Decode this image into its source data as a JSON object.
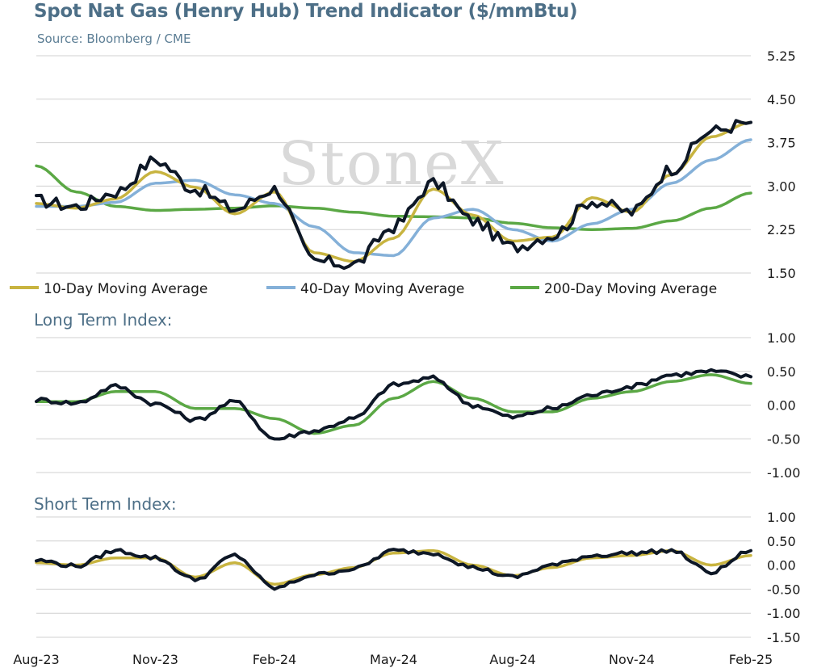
{
  "title": "Spot Nat Gas (Henry Hub) Trend Indicator ($/mmBtu)",
  "source": "Source: Bloomberg / CME",
  "watermark": "StoneX",
  "colors": {
    "price": "#0d1726",
    "ma10": "#c8b440",
    "ma40": "#84b0d8",
    "ma200": "#5ba845",
    "grid": "#d0d0d0",
    "title": "#4d6f87"
  },
  "x_axis": {
    "labels": [
      "Aug-23",
      "Nov-23",
      "Feb-24",
      "May-24",
      "Aug-24",
      "Nov-24",
      "Feb-25"
    ]
  },
  "chart_data": [
    {
      "type": "line",
      "title": "Spot Nat Gas (Henry Hub) Trend Indicator ($/mmBtu)",
      "ylim": [
        1.5,
        5.25
      ],
      "yticks": [
        "5.25",
        "4.50",
        "3.75",
        "3.00",
        "2.25",
        "1.50"
      ],
      "legend_position": "bottom",
      "grid": true,
      "x": [
        "Aug-23",
        "Sep-23",
        "Oct-23",
        "Nov-23",
        "Dec-23",
        "Jan-24",
        "Feb-24",
        "Mar-24",
        "Apr-24",
        "May-24",
        "Jun-24",
        "Jul-24",
        "Aug-24",
        "Sep-24",
        "Oct-24",
        "Nov-24",
        "Dec-24",
        "Jan-25",
        "Feb-25"
      ],
      "series": [
        {
          "name": "",
          "role": "price",
          "values": [
            2.75,
            2.65,
            2.9,
            3.45,
            2.95,
            2.6,
            2.95,
            1.7,
            1.65,
            2.3,
            3.05,
            2.4,
            1.95,
            2.15,
            2.75,
            2.55,
            3.3,
            3.95,
            4.1
          ]
        },
        {
          "name": "10-Day Moving Average",
          "role": "ma10",
          "values": [
            2.7,
            2.62,
            2.78,
            3.25,
            2.98,
            2.52,
            2.9,
            1.85,
            1.7,
            2.1,
            2.95,
            2.5,
            2.05,
            2.12,
            2.8,
            2.55,
            3.2,
            3.85,
            4.1
          ]
        },
        {
          "name": "40-Day Moving Average",
          "role": "ma40",
          "values": [
            2.65,
            2.65,
            2.72,
            3.05,
            3.1,
            2.85,
            2.7,
            2.3,
            1.85,
            1.8,
            2.45,
            2.6,
            2.25,
            2.05,
            2.35,
            2.6,
            3.05,
            3.45,
            3.8
          ]
        },
        {
          "name": "200-Day Moving Average",
          "role": "ma200",
          "values": [
            3.35,
            2.9,
            2.65,
            2.58,
            2.6,
            2.62,
            2.66,
            2.62,
            2.55,
            2.48,
            2.47,
            2.45,
            2.36,
            2.28,
            2.25,
            2.27,
            2.4,
            2.62,
            2.88
          ]
        }
      ]
    },
    {
      "type": "line",
      "title": "Long Term Index:",
      "ylim": [
        -1.0,
        1.0
      ],
      "yticks": [
        "1.00",
        "0.50",
        "0.00",
        "-0.50",
        "-1.00"
      ],
      "grid": true,
      "x": [
        "Aug-23",
        "Sep-23",
        "Oct-23",
        "Nov-23",
        "Dec-23",
        "Jan-24",
        "Feb-24",
        "Mar-24",
        "Apr-24",
        "May-24",
        "Jun-24",
        "Jul-24",
        "Aug-24",
        "Sep-24",
        "Oct-24",
        "Nov-24",
        "Dec-24",
        "Jan-25",
        "Feb-25"
      ],
      "series": [
        {
          "name": "",
          "role": "index",
          "values": [
            0.08,
            0.03,
            0.28,
            0.02,
            -0.22,
            0.05,
            -0.5,
            -0.38,
            -0.2,
            0.3,
            0.4,
            0.0,
            -0.18,
            -0.05,
            0.15,
            0.28,
            0.45,
            0.5,
            0.42
          ]
        },
        {
          "name": "",
          "role": "index-ma",
          "values": [
            0.05,
            0.05,
            0.2,
            0.2,
            -0.05,
            -0.05,
            -0.2,
            -0.42,
            -0.3,
            0.1,
            0.35,
            0.1,
            -0.1,
            -0.1,
            0.1,
            0.2,
            0.35,
            0.45,
            0.32
          ]
        }
      ]
    },
    {
      "type": "line",
      "title": "Short Term Index:",
      "ylim": [
        -1.5,
        1.0
      ],
      "yticks": [
        "1.00",
        "0.50",
        "0.00",
        "-0.50",
        "-1.00",
        "-1.50"
      ],
      "grid": true,
      "x": [
        "Aug-23",
        "Sep-23",
        "Oct-23",
        "Nov-23",
        "Dec-23",
        "Jan-24",
        "Feb-24",
        "Mar-24",
        "Apr-24",
        "May-24",
        "Jun-24",
        "Jul-24",
        "Aug-24",
        "Sep-24",
        "Oct-24",
        "Nov-24",
        "Dec-24",
        "Jan-25",
        "Feb-25"
      ],
      "series": [
        {
          "name": "",
          "role": "index",
          "values": [
            0.1,
            -0.02,
            0.3,
            0.15,
            -0.3,
            0.2,
            -0.48,
            -0.2,
            -0.08,
            0.3,
            0.25,
            -0.05,
            -0.25,
            0.0,
            0.2,
            0.25,
            0.3,
            -0.15,
            0.3
          ]
        },
        {
          "name": "",
          "role": "index-ma",
          "values": [
            0.05,
            0.0,
            0.15,
            0.15,
            -0.25,
            0.05,
            -0.4,
            -0.2,
            -0.05,
            0.25,
            0.3,
            0.0,
            -0.22,
            -0.05,
            0.15,
            0.2,
            0.3,
            0.0,
            0.2
          ]
        }
      ]
    }
  ],
  "panels": {
    "long_title": "Long Term Index:",
    "short_title": "Short Term Index:"
  }
}
